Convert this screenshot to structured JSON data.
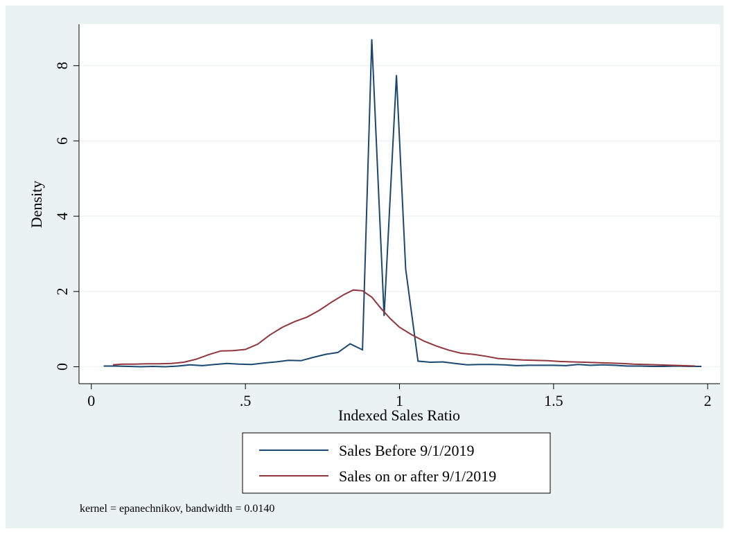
{
  "chart_data": {
    "type": "line",
    "title": "",
    "xlabel": "Indexed Sales Ratio",
    "ylabel": "Density",
    "xlim": [
      -0.04,
      2.04
    ],
    "ylim": [
      -0.45,
      9.1
    ],
    "x_ticks": [
      0,
      0.5,
      1,
      1.5,
      2
    ],
    "x_tick_labels": [
      "0",
      ".5",
      "1",
      "1.5",
      "2"
    ],
    "y_ticks": [
      0,
      2,
      4,
      6,
      8
    ],
    "y_tick_labels": [
      "0",
      "2",
      "4",
      "6",
      "8"
    ],
    "grid": true,
    "legend_position": "bottom",
    "note": "kernel = epanechnikov, bandwidth = 0.0140",
    "colors": {
      "background": "#eaf2f3",
      "plot_area": "#ffffff",
      "grid": "#eaf2f3",
      "series_before": "#1a476f",
      "series_after": "#90353b"
    },
    "series": [
      {
        "name": "Sales Before 9/1/2019",
        "color": "#1a476f",
        "x": [
          0.04,
          0.08,
          0.12,
          0.16,
          0.2,
          0.24,
          0.28,
          0.32,
          0.36,
          0.4,
          0.44,
          0.48,
          0.52,
          0.56,
          0.6,
          0.64,
          0.68,
          0.72,
          0.76,
          0.8,
          0.84,
          0.88,
          0.91,
          0.95,
          0.99,
          1.02,
          1.06,
          1.1,
          1.14,
          1.18,
          1.22,
          1.26,
          1.3,
          1.34,
          1.38,
          1.42,
          1.46,
          1.5,
          1.54,
          1.58,
          1.62,
          1.66,
          1.7,
          1.74,
          1.78,
          1.82,
          1.86,
          1.9,
          1.94,
          1.98
        ],
        "values": [
          0.02,
          0.02,
          0.01,
          0.0,
          0.01,
          0.0,
          0.02,
          0.05,
          0.03,
          0.06,
          0.09,
          0.07,
          0.06,
          0.1,
          0.13,
          0.17,
          0.16,
          0.25,
          0.33,
          0.38,
          0.61,
          0.45,
          8.7,
          1.35,
          7.75,
          2.6,
          0.15,
          0.12,
          0.13,
          0.09,
          0.05,
          0.06,
          0.06,
          0.05,
          0.03,
          0.04,
          0.04,
          0.04,
          0.03,
          0.06,
          0.04,
          0.05,
          0.04,
          0.02,
          0.02,
          0.01,
          0.01,
          0.02,
          0.01,
          0.01
        ]
      },
      {
        "name": "Sales on or after 9/1/2019",
        "color": "#90353b",
        "x": [
          0.07,
          0.1,
          0.14,
          0.18,
          0.22,
          0.26,
          0.3,
          0.34,
          0.38,
          0.42,
          0.46,
          0.5,
          0.54,
          0.58,
          0.62,
          0.66,
          0.7,
          0.74,
          0.78,
          0.82,
          0.85,
          0.88,
          0.91,
          0.94,
          0.97,
          1.0,
          1.04,
          1.08,
          1.12,
          1.16,
          1.2,
          1.24,
          1.28,
          1.32,
          1.36,
          1.4,
          1.44,
          1.48,
          1.52,
          1.56,
          1.6,
          1.64,
          1.68,
          1.72,
          1.76,
          1.8,
          1.84,
          1.88,
          1.92,
          1.96
        ],
        "values": [
          0.05,
          0.07,
          0.07,
          0.08,
          0.08,
          0.09,
          0.12,
          0.2,
          0.32,
          0.42,
          0.43,
          0.46,
          0.6,
          0.85,
          1.05,
          1.2,
          1.32,
          1.5,
          1.72,
          1.92,
          2.04,
          2.02,
          1.85,
          1.55,
          1.28,
          1.05,
          0.85,
          0.68,
          0.55,
          0.44,
          0.36,
          0.33,
          0.28,
          0.22,
          0.2,
          0.18,
          0.17,
          0.16,
          0.14,
          0.13,
          0.12,
          0.11,
          0.1,
          0.09,
          0.07,
          0.06,
          0.05,
          0.04,
          0.03,
          0.02
        ]
      }
    ]
  }
}
